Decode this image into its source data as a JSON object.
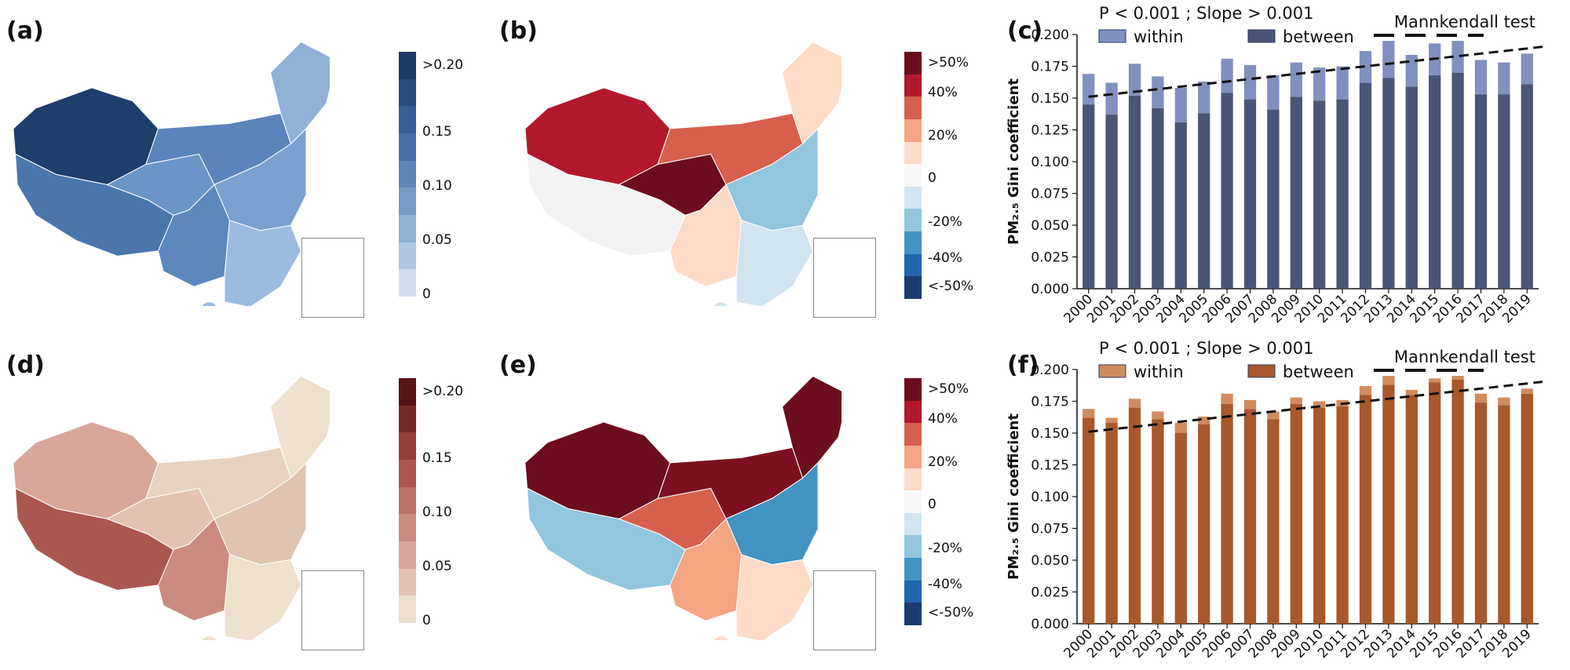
{
  "panels": {
    "a": "(a)",
    "b": "(b)",
    "c": "(c)",
    "d": "(d)",
    "e": "(e)",
    "f": "(f)"
  },
  "legends": {
    "blue_gini": {
      "labels": [
        ">0.20",
        "0.15",
        "0.10",
        "0.05",
        "0"
      ],
      "colors": [
        "#1b3a66",
        "#274c80",
        "#355f97",
        "#4670aa",
        "#5c85b9",
        "#759bc9",
        "#90b0d6",
        "#adc7e3",
        "#cfdff0"
      ]
    },
    "red_change": {
      "labels": [
        ">50%",
        "40%",
        "20%",
        "0",
        "-20%",
        "-40%",
        "<-50%"
      ],
      "colors": [
        "#6b0d1c",
        "#b2182b",
        "#d6604d",
        "#f4a582",
        "#fddbc7",
        "#f7f7f7",
        "#d1e5f0",
        "#92c5de",
        "#4393c3",
        "#2166ac",
        "#1a3d6e"
      ]
    },
    "brown_gini": {
      "labels": [
        ">0.20",
        "0.15",
        "0.10",
        "0.05",
        "0"
      ],
      "colors": [
        "#5a1414",
        "#7a2a26",
        "#93403a",
        "#a9574f",
        "#bc6f66",
        "#cc8b80",
        "#d9a69a",
        "#e4c2b2",
        "#ede0cd"
      ]
    }
  },
  "maps": {
    "a": {
      "colors": {
        "west": "#1e3e6b",
        "south": "#4a76ad",
        "center": "#6b95c6",
        "north": "#5a84bb",
        "northeast": "#8fb1d6",
        "east": "#7aa1cf",
        "southwest": "#5c88bf",
        "southeast": "#9bbbe0"
      }
    },
    "b": {
      "colors": {
        "west": "#b2182b",
        "south": "#f2f2f2",
        "center": "#6b0d1c",
        "north": "#d6604d",
        "northeast": "#fddbc7",
        "east": "#92c5de",
        "southwest": "#fddbc7",
        "southeast": "#d1e5f0"
      }
    },
    "d": {
      "colors": {
        "west": "#d9a69a",
        "south": "#a9574f",
        "center": "#e4c2b2",
        "north": "#e6d3c1",
        "northeast": "#ede0cd",
        "east": "#e0c4b0",
        "southwest": "#cc8b80",
        "southeast": "#ede0cd"
      }
    },
    "e": {
      "colors": {
        "west": "#6b0d1c",
        "south": "#92c5de",
        "center": "#d6604d",
        "north": "#7d1020",
        "northeast": "#6b0d1c",
        "east": "#4393c3",
        "southwest": "#f4a582",
        "southeast": "#fddbc7"
      }
    }
  },
  "chart_data": [
    {
      "type": "bar",
      "panel": "c",
      "stacked": true,
      "annotation": "P < 0.001 ; Slope > 0.001",
      "test_label": "Mannkendall  test",
      "ylabel": "PM₂.₅ Gini coefficient",
      "ylim": [
        0,
        0.2
      ],
      "yticks": [
        "0.000",
        "0.025",
        "0.050",
        "0.075",
        "0.100",
        "0.125",
        "0.150",
        "0.175",
        "0.200"
      ],
      "categories": [
        "2000",
        "2001",
        "2002",
        "2003",
        "2004",
        "2005",
        "2006",
        "2007",
        "2008",
        "2009",
        "2010",
        "2011",
        "2012",
        "2013",
        "2014",
        "2015",
        "2016",
        "2017",
        "2018",
        "2019"
      ],
      "series": [
        {
          "name": "between",
          "color": "#4a5577",
          "values": [
            0.145,
            0.137,
            0.152,
            0.142,
            0.131,
            0.138,
            0.154,
            0.149,
            0.141,
            0.151,
            0.148,
            0.149,
            0.162,
            0.166,
            0.159,
            0.168,
            0.17,
            0.153,
            0.153,
            0.161
          ]
        },
        {
          "name": "within",
          "color": "#8090bf",
          "values": [
            0.024,
            0.025,
            0.025,
            0.025,
            0.027,
            0.025,
            0.027,
            0.027,
            0.027,
            0.027,
            0.026,
            0.026,
            0.025,
            0.029,
            0.025,
            0.025,
            0.025,
            0.027,
            0.025,
            0.024
          ]
        }
      ],
      "trend": [
        0.151,
        0.189
      ]
    },
    {
      "type": "bar",
      "panel": "f",
      "stacked": true,
      "annotation": "P < 0.001 ; Slope > 0.001",
      "test_label": "Mannkendall  test",
      "ylabel": "PM₂.₅ Gini coefficient",
      "ylim": [
        0,
        0.2
      ],
      "yticks": [
        "0.000",
        "0.025",
        "0.050",
        "0.075",
        "0.100",
        "0.125",
        "0.150",
        "0.175",
        "0.200"
      ],
      "categories": [
        "2000",
        "2001",
        "2002",
        "2003",
        "2004",
        "2005",
        "2006",
        "2007",
        "2008",
        "2009",
        "2010",
        "2011",
        "2012",
        "2013",
        "2014",
        "2015",
        "2016",
        "2017",
        "2018",
        "2019"
      ],
      "series": [
        {
          "name": "between",
          "color": "#a8582a",
          "values": [
            0.162,
            0.158,
            0.17,
            0.161,
            0.15,
            0.157,
            0.173,
            0.169,
            0.161,
            0.173,
            0.17,
            0.171,
            0.18,
            0.188,
            0.18,
            0.19,
            0.192,
            0.174,
            0.172,
            0.181
          ]
        },
        {
          "name": "within",
          "color": "#d08c5e",
          "values": [
            0.007,
            0.004,
            0.007,
            0.006,
            0.008,
            0.006,
            0.008,
            0.007,
            0.006,
            0.005,
            0.005,
            0.005,
            0.007,
            0.007,
            0.004,
            0.003,
            0.003,
            0.007,
            0.006,
            0.004
          ]
        }
      ],
      "trend": [
        0.151,
        0.189
      ]
    }
  ]
}
